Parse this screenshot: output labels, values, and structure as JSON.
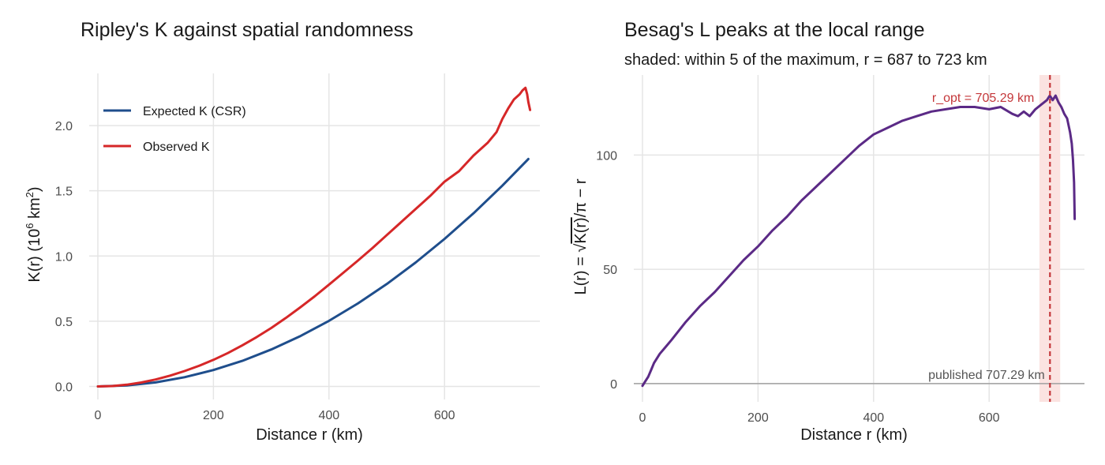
{
  "colors": {
    "expected": "#1f4e8c",
    "observed": "#d62728",
    "L_line": "#5b2a86",
    "band_fill": "#fbe3e1",
    "opt_line": "#c4373a",
    "published_line": "#a0a0a0",
    "published_text": "#555555",
    "grid": "#e5e5e5"
  },
  "chart_data": [
    {
      "type": "line",
      "title": "Ripley's K against spatial randomness",
      "xlabel": "Distance r (km)",
      "ylabel_parts": {
        "main": "K(r) (10",
        "exp1": "6",
        "mid": " km",
        "exp2": "2",
        "end": ")"
      },
      "xlim": [
        -15,
        765
      ],
      "ylim": [
        -0.1,
        2.4
      ],
      "xticks": [
        0,
        200,
        400,
        600
      ],
      "xtick_labels": [
        "0",
        "200",
        "400",
        "600"
      ],
      "yticks": [
        0,
        0.5,
        1.0,
        1.5,
        2.0
      ],
      "ytick_labels": [
        "0.0",
        "0.5",
        "1.0",
        "1.5",
        "2.0"
      ],
      "grid": true,
      "legend_position": "top-left",
      "series": [
        {
          "name": "Expected K (CSR)",
          "x": [
            0,
            50,
            100,
            150,
            200,
            250,
            300,
            350,
            400,
            450,
            500,
            550,
            600,
            650,
            700,
            745
          ],
          "y": [
            0,
            0.008,
            0.031,
            0.071,
            0.126,
            0.196,
            0.283,
            0.385,
            0.503,
            0.636,
            0.785,
            0.95,
            1.131,
            1.327,
            1.539,
            1.744
          ]
        },
        {
          "name": "Observed K",
          "x": [
            0,
            25,
            50,
            75,
            100,
            125,
            150,
            175,
            200,
            225,
            250,
            275,
            300,
            325,
            350,
            375,
            400,
            425,
            450,
            475,
            500,
            525,
            550,
            575,
            600,
            625,
            650,
            675,
            690,
            700,
            710,
            720,
            730,
            735,
            740,
            743,
            745,
            748
          ],
          "y": [
            0,
            0.003,
            0.013,
            0.03,
            0.053,
            0.083,
            0.118,
            0.158,
            0.204,
            0.256,
            0.315,
            0.379,
            0.448,
            0.524,
            0.605,
            0.69,
            0.78,
            0.872,
            0.965,
            1.06,
            1.16,
            1.26,
            1.36,
            1.46,
            1.57,
            1.65,
            1.77,
            1.87,
            1.95,
            2.05,
            2.13,
            2.2,
            2.24,
            2.27,
            2.29,
            2.24,
            2.18,
            2.12
          ]
        }
      ]
    },
    {
      "type": "line",
      "title": "Besag's L peaks at the local range",
      "subtitle": "shaded: within 5 of the maximum, r = 687 to 723 km",
      "xlabel": "Distance r (km)",
      "ylabel_parts": {
        "main": "L(r) = ",
        "sqrt_sym": "√",
        "inner": "K(r)",
        "rest": "/π − r"
      },
      "xlim": [
        -15,
        765
      ],
      "ylim": [
        -8,
        135
      ],
      "xticks": [
        0,
        200,
        400,
        600
      ],
      "xtick_labels": [
        "0",
        "200",
        "400",
        "600"
      ],
      "yticks": [
        0,
        50,
        100
      ],
      "ytick_labels": [
        "0",
        "50",
        "100"
      ],
      "grid": true,
      "shaded_band": [
        687,
        723
      ],
      "r_opt": 705.29,
      "r_opt_label": "r_opt = 705.29 km",
      "published": 707.29,
      "published_label": "published 707.29 km",
      "series": [
        {
          "name": "L(r)",
          "x": [
            0,
            5,
            10,
            15,
            20,
            30,
            40,
            50,
            75,
            100,
            125,
            150,
            175,
            200,
            225,
            250,
            275,
            300,
            325,
            350,
            375,
            400,
            425,
            450,
            475,
            500,
            525,
            550,
            575,
            600,
            620,
            640,
            650,
            660,
            670,
            680,
            690,
            700,
            705,
            710,
            715,
            720,
            725,
            730,
            735,
            740,
            743,
            745,
            747,
            748
          ],
          "y": [
            -1,
            1,
            3,
            6,
            9,
            13,
            16,
            19,
            27,
            34,
            40,
            47,
            54,
            60,
            67,
            73,
            80,
            86,
            92,
            98,
            104,
            109,
            112,
            115,
            117,
            119,
            120,
            121,
            121,
            120,
            121,
            118,
            117,
            119,
            117,
            120,
            122,
            124,
            126,
            124,
            126,
            123,
            121,
            118,
            116,
            110,
            105,
            98,
            88,
            72
          ]
        }
      ]
    }
  ]
}
